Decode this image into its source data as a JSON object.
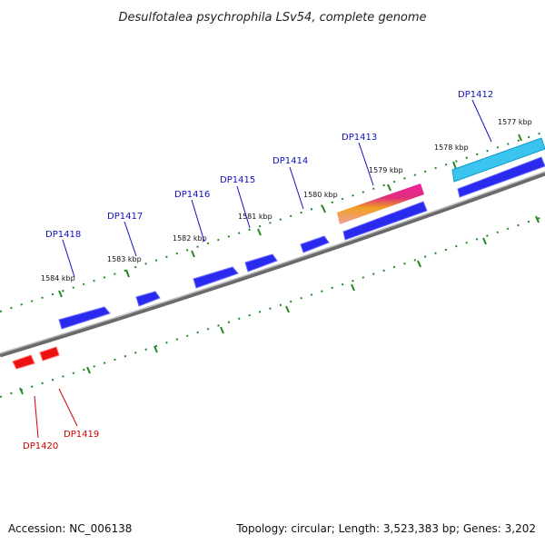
{
  "title": "Desulfotalea psychrophila LSv54, complete genome",
  "footer": {
    "accession": "Accession: NC_006138",
    "summary": "Topology: circular; Length: 3,523,383 bp; Genes: 3,202"
  },
  "scale_labels": [
    "1577 kbp",
    "1578 kbp",
    "1579 kbp",
    "1580 kbp",
    "1581 kbp",
    "1582 kbp",
    "1583 kbp",
    "1584 kbp"
  ],
  "genes_forward": [
    "DP1412",
    "DP1413",
    "DP1414",
    "DP1415",
    "DP1416",
    "DP1417",
    "DP1418"
  ],
  "genes_reverse": [
    "DP1419",
    "DP1420"
  ],
  "colors": {
    "forward_gene": "#1a1aee",
    "reverse_gene": "#ee1111",
    "highlight_gene": "#33c0ee",
    "gradient_gene": "#ee2288",
    "backbone": "#808080",
    "ticks": "#228822"
  }
}
